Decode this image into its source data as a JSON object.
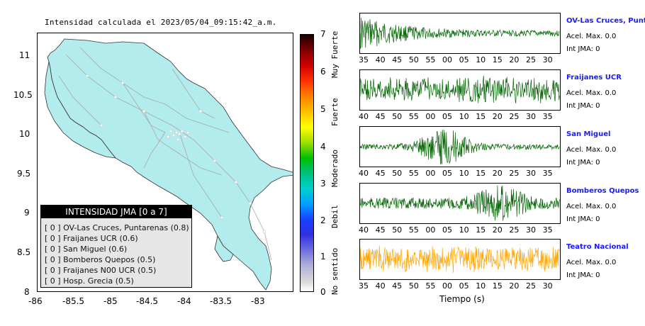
{
  "map": {
    "title": "Intensidad calculada el 2023/05/04_09:15:42_a.m.",
    "y_ticks": [
      "11",
      "10.5",
      "10",
      "9.5",
      "9",
      "8.5",
      "8"
    ],
    "x_ticks": [
      "-86",
      "-85.5",
      "-85",
      "-84.5",
      "-84",
      "-83.5",
      "-83"
    ],
    "land_color": "#b3ecec",
    "road_color": "#a8a8a8"
  },
  "legend": {
    "title": "INTENSIDAD JMA [0 a 7]",
    "rows": [
      "[ 0 ] OV-Las Cruces, Puntarenas (0.8)",
      "[ 0 ] Fraijanes UCR (0.6)",
      "[ 0 ] San Miguel (0.6)",
      "[ 0 ] Bomberos Quepos (0.5)",
      "[ 0 ] Fraijanes N00 UCR (0.5)",
      "[ 0 ] Hosp. Grecia (0.5)"
    ]
  },
  "colorbar": {
    "ticks": [
      "7",
      "6",
      "5",
      "4",
      "3",
      "2",
      "1",
      "0"
    ],
    "categories": [
      "Muy Fuerte",
      "Fuerte",
      "Moderado",
      "Debil",
      "No sentido"
    ]
  },
  "stations": [
    {
      "name": "OV-Las Cruces, Puntar",
      "accel": "Acel. Max. 0.0",
      "int": "Int JMA: 0",
      "color": "#006400",
      "ticks": [
        "35",
        "40",
        "45",
        "50",
        "55",
        "00",
        "05",
        "10",
        "15",
        "20",
        "25",
        "30"
      ],
      "amp_profile": "decay"
    },
    {
      "name": "Fraijanes UCR",
      "accel": "Acel. Max. 0.0",
      "int": "Int JMA: 0",
      "color": "#006400",
      "ticks": [
        "40",
        "45",
        "50",
        "55",
        "00",
        "05",
        "10",
        "15",
        "20",
        "25",
        "30",
        "35"
      ],
      "amp_profile": "noisy"
    },
    {
      "name": "San Miguel",
      "accel": "Acel. Max. 0.0",
      "int": "Int JMA: 0",
      "color": "#006400",
      "ticks": [
        "40",
        "45",
        "50",
        "55",
        "00",
        "05",
        "10",
        "15",
        "20",
        "25",
        "30",
        "35"
      ],
      "amp_profile": "burst"
    },
    {
      "name": "Bomberos Quepos",
      "accel": "Acel. Max. 0.0",
      "int": "Int JMA: 0",
      "color": "#006400",
      "ticks": [
        "40",
        "45",
        "50",
        "55",
        "00",
        "05",
        "10",
        "15",
        "20",
        "25",
        "30",
        "35"
      ],
      "amp_profile": "late"
    },
    {
      "name": "Teatro Nacional",
      "accel": "Acel. Max. 0.0",
      "int": "Int JMA: 0",
      "color": "#ffa500",
      "ticks": [
        "35",
        "40",
        "45",
        "50",
        "55",
        "00",
        "05",
        "10",
        "15",
        "20",
        "25",
        "30"
      ],
      "amp_profile": "noisy"
    }
  ],
  "time_axis_label": "Tiempo (s)"
}
